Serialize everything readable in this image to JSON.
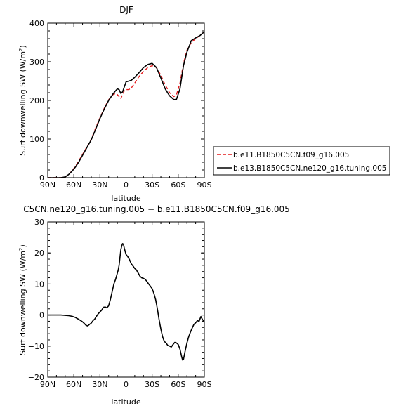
{
  "chart_data": [
    {
      "type": "line",
      "title": "DJF",
      "xlabel": "latitude",
      "ylabel": "Surf downwelling SW (W/m²)",
      "ylabel_main": "Surf downwelling SW (W/m",
      "ylabel_sup": "2",
      "ylabel_end": ")",
      "xlim": [
        90,
        -90
      ],
      "ylim": [
        0,
        400
      ],
      "x_ticks": [
        90,
        60,
        30,
        0,
        -30,
        -60,
        -90
      ],
      "x_tick_labels": [
        "90N",
        "60N",
        "30N",
        "0",
        "30S",
        "60S",
        "90S"
      ],
      "y_ticks": [
        0,
        100,
        200,
        300,
        400
      ],
      "y_tick_labels": [
        "0",
        "100",
        "200",
        "300",
        "400"
      ],
      "legend_position": "right",
      "series": [
        {
          "name": "b.e11.B1850C5CN.f09_g16.005",
          "color": "#e41a1c",
          "style": "dashed",
          "x": [
            90,
            80,
            75,
            70,
            66,
            62,
            58,
            54,
            50,
            45,
            40,
            35,
            30,
            25,
            20,
            15,
            12,
            10,
            8,
            6,
            4,
            2,
            0,
            -3,
            -6,
            -10,
            -15,
            -20,
            -25,
            -30,
            -35,
            -40,
            -45,
            -50,
            -55,
            -58,
            -62,
            -66,
            -70,
            -75,
            -80,
            -85,
            -90
          ],
          "y": [
            0,
            0,
            0,
            2,
            8,
            18,
            30,
            45,
            60,
            80,
            100,
            128,
            155,
            180,
            202,
            215,
            218,
            215,
            210,
            205,
            215,
            225,
            228,
            228,
            232,
            245,
            262,
            275,
            285,
            290,
            285,
            265,
            240,
            220,
            210,
            215,
            245,
            295,
            330,
            350,
            360,
            368,
            378
          ]
        },
        {
          "name": "b.e13.B1850C5CN.ne120_g16.tuning.005",
          "color": "#000000",
          "style": "solid",
          "x": [
            90,
            80,
            75,
            70,
            66,
            62,
            58,
            54,
            50,
            45,
            40,
            35,
            30,
            25,
            20,
            15,
            12,
            10,
            8,
            6,
            4,
            2,
            0,
            -3,
            -6,
            -10,
            -15,
            -20,
            -25,
            -30,
            -35,
            -40,
            -45,
            -50,
            -55,
            -58,
            -62,
            -66,
            -70,
            -75,
            -80,
            -85,
            -90
          ],
          "y": [
            0,
            0,
            0,
            2,
            8,
            17,
            28,
            42,
            58,
            78,
            98,
            125,
            153,
            178,
            200,
            217,
            225,
            230,
            228,
            218,
            222,
            235,
            248,
            250,
            252,
            260,
            272,
            285,
            293,
            296,
            285,
            258,
            230,
            212,
            202,
            203,
            230,
            290,
            325,
            355,
            362,
            368,
            378
          ]
        }
      ]
    },
    {
      "type": "line",
      "title": "C5CN.ne120_g16.tuning.005 − b.e11.B1850C5CN.f09_g16.005",
      "xlabel": "latitude",
      "ylabel": "Surf downwelling SW (W/m²)",
      "ylabel_main": "Surf downwelling SW (W/m",
      "ylabel_sup": "2",
      "ylabel_end": ")",
      "xlim": [
        90,
        -90
      ],
      "ylim": [
        -20,
        30
      ],
      "x_ticks": [
        90,
        60,
        30,
        0,
        -30,
        -60,
        -90
      ],
      "x_tick_labels": [
        "90N",
        "60N",
        "30N",
        "0",
        "30S",
        "60S",
        "90S"
      ],
      "y_ticks": [
        -20,
        -10,
        0,
        10,
        20,
        30
      ],
      "y_tick_labels": [
        "−20",
        "−10",
        "0",
        "10",
        "20",
        "30"
      ],
      "series": [
        {
          "color": "#000000",
          "style": "solid",
          "x": [
            90,
            80,
            75,
            70,
            66,
            62,
            58,
            55,
            52,
            50,
            48,
            46,
            44,
            42,
            40,
            38,
            36,
            34,
            32,
            30,
            28,
            26,
            24,
            22,
            20,
            18,
            16,
            14,
            12,
            10,
            9,
            8,
            7,
            6,
            5,
            4,
            3,
            2,
            1,
            0,
            -2,
            -4,
            -6,
            -8,
            -10,
            -12,
            -14,
            -16,
            -18,
            -20,
            -22,
            -24,
            -26,
            -28,
            -30,
            -32,
            -34,
            -36,
            -38,
            -40,
            -42,
            -44,
            -46,
            -48,
            -50,
            -52,
            -54,
            -56,
            -58,
            -60,
            -62,
            -64,
            -65,
            -66,
            -68,
            -70,
            -72,
            -74,
            -76,
            -78,
            -80,
            -82,
            -84,
            -86,
            -88,
            -90
          ],
          "y": [
            0,
            0,
            0,
            -0.1,
            -0.2,
            -0.4,
            -0.8,
            -1.3,
            -1.8,
            -2.2,
            -2.7,
            -3.3,
            -3.5,
            -3.0,
            -2.6,
            -1.8,
            -1.3,
            -0.4,
            0.4,
            1.0,
            1.6,
            2.5,
            2.6,
            2.3,
            3.0,
            5.0,
            7.5,
            10.0,
            11.5,
            13.5,
            14.5,
            16.0,
            18.5,
            21.0,
            22.2,
            23.0,
            22.8,
            21.5,
            20.5,
            19.5,
            18.8,
            17.8,
            16.5,
            15.8,
            15.0,
            14.5,
            13.5,
            12.5,
            12.0,
            11.8,
            11.5,
            10.8,
            10.0,
            9.3,
            8.5,
            7.0,
            5.0,
            2.0,
            -1.5,
            -4.5,
            -7.0,
            -8.5,
            -9.0,
            -9.8,
            -10.0,
            -10.3,
            -9.5,
            -8.8,
            -9.0,
            -9.5,
            -11.0,
            -13.5,
            -14.5,
            -14.3,
            -11.5,
            -9.0,
            -7.0,
            -5.5,
            -4.2,
            -3.0,
            -2.5,
            -1.8,
            -2.0,
            -0.5,
            -1.5,
            -2.2
          ]
        }
      ]
    }
  ]
}
